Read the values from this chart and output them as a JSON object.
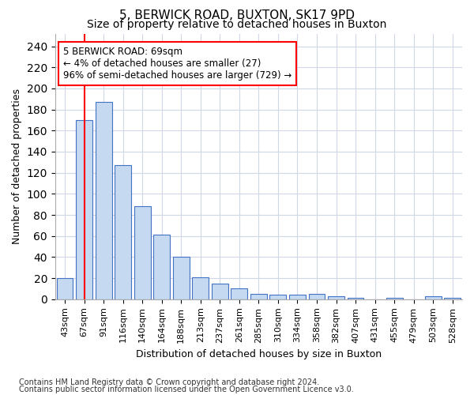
{
  "title_line1": "5, BERWICK ROAD, BUXTON, SK17 9PD",
  "title_line2": "Size of property relative to detached houses in Buxton",
  "xlabel": "Distribution of detached houses by size in Buxton",
  "ylabel": "Number of detached properties",
  "footer_line1": "Contains HM Land Registry data © Crown copyright and database right 2024.",
  "footer_line2": "Contains public sector information licensed under the Open Government Licence v3.0.",
  "annotation_line1": "5 BERWICK ROAD: 69sqm",
  "annotation_line2": "← 4% of detached houses are smaller (27)",
  "annotation_line3": "96% of semi-detached houses are larger (729) →",
  "bar_labels": [
    "43sqm",
    "67sqm",
    "91sqm",
    "116sqm",
    "140sqm",
    "164sqm",
    "188sqm",
    "213sqm",
    "237sqm",
    "261sqm",
    "285sqm",
    "310sqm",
    "334sqm",
    "358sqm",
    "382sqm",
    "407sqm",
    "431sqm",
    "455sqm",
    "479sqm",
    "503sqm",
    "528sqm"
  ],
  "bar_values": [
    20,
    170,
    187,
    127,
    88,
    61,
    40,
    21,
    15,
    10,
    5,
    4,
    4,
    5,
    3,
    1,
    0,
    1,
    0,
    3,
    1
  ],
  "bar_color": "#c5d9f0",
  "bar_edge_color": "#4472c4",
  "red_line_x": 1.0,
  "ylim": [
    0,
    252
  ],
  "yticks": [
    0,
    20,
    40,
    60,
    80,
    100,
    120,
    140,
    160,
    180,
    200,
    220,
    240
  ],
  "fig_bg": "#ffffff",
  "plot_bg": "#ffffff",
  "grid_color": "#d0d8e8",
  "annotation_box_color": "white",
  "annotation_box_edge_color": "red",
  "title1_fontsize": 11,
  "title2_fontsize": 10,
  "ylabel_fontsize": 9,
  "xlabel_fontsize": 9,
  "tick_fontsize": 8,
  "footer_fontsize": 7
}
